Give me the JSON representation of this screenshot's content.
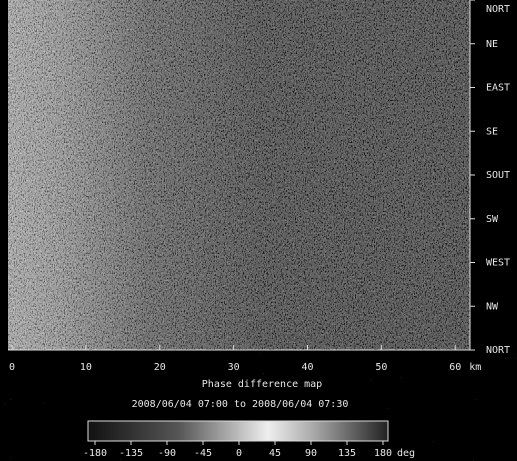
{
  "chart_data": {
    "type": "image",
    "title": "Phase difference map",
    "subtitle": "2008/06/04 07:00  to  2008/06/04 07:30",
    "xlim": [
      0,
      62
    ],
    "xticks": [
      0,
      10,
      20,
      30,
      40,
      50,
      60
    ],
    "x_unit": "km",
    "y_labels": [
      "NORT",
      "NE",
      "EAST",
      "SE",
      "SOUT",
      "SW",
      "WEST",
      "NW",
      "NORT"
    ],
    "colorbar": {
      "lim": [
        -180,
        180
      ],
      "ticks": [
        -180,
        -135,
        -90,
        -45,
        0,
        45,
        90,
        135,
        180
      ],
      "unit": "deg"
    }
  }
}
